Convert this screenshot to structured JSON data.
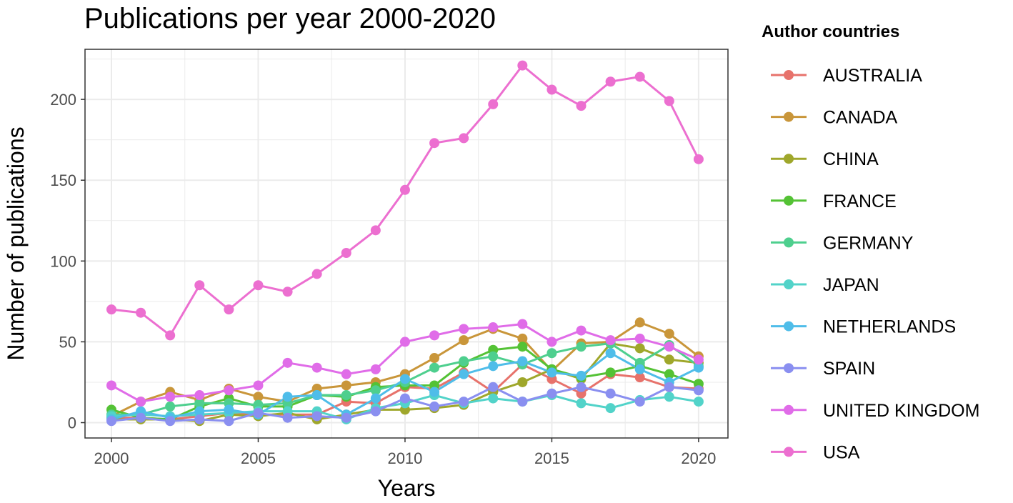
{
  "chart_data": {
    "type": "line",
    "title": "Publications per year 2000-2020",
    "xlabel": "Years",
    "ylabel": "Number of publications",
    "legend_title": "Author countries",
    "legend_position": "right",
    "grid": true,
    "xlim": [
      1999.1,
      2021
    ],
    "ylim": [
      -9.5,
      231
    ],
    "x_ticks": [
      2000,
      2005,
      2010,
      2015,
      2020
    ],
    "y_ticks": [
      0,
      50,
      100,
      150,
      200
    ],
    "x": [
      2000,
      2001,
      2002,
      2003,
      2004,
      2005,
      2006,
      2007,
      2008,
      2009,
      2010,
      2011,
      2012,
      2013,
      2014,
      2015,
      2016,
      2017,
      2018,
      2019,
      2020
    ],
    "series": [
      {
        "name": "AUSTRALIA",
        "color": "#F8766D",
        "values": [
          3,
          3,
          2,
          4,
          6,
          5,
          5,
          5,
          13,
          12,
          22,
          21,
          31,
          19,
          36,
          27,
          18,
          30,
          28,
          22,
          21
        ]
      },
      {
        "name": "CANADA",
        "color": "#D39200",
        "values": [
          4,
          13,
          19,
          14,
          21,
          16,
          13,
          21,
          23,
          25,
          30,
          40,
          51,
          58,
          52,
          32,
          49,
          50,
          62,
          55,
          41
        ]
      },
      {
        "name": "CHINA",
        "color": "#93AA00",
        "values": [
          2,
          2,
          2,
          1,
          5,
          4,
          6,
          2,
          5,
          8,
          8,
          9,
          11,
          19,
          25,
          33,
          27,
          49,
          46,
          39,
          37
        ]
      },
      {
        "name": "FRANCE",
        "color": "#00BA38",
        "values": [
          8,
          3,
          2,
          10,
          15,
          10,
          10,
          17,
          16,
          22,
          23,
          23,
          37,
          45,
          47,
          33,
          28,
          31,
          35,
          30,
          24
        ]
      },
      {
        "name": "GERMANY",
        "color": "#00C19F",
        "values": [
          5,
          5,
          10,
          12,
          12,
          11,
          12,
          17,
          17,
          20,
          25,
          34,
          38,
          41,
          36,
          43,
          47,
          49,
          37,
          48,
          35
        ]
      },
      {
        "name": "JAPAN",
        "color": "#00B9E3",
        "values": [
          4,
          5,
          4,
          5,
          6,
          7,
          7,
          7,
          2,
          9,
          12,
          17,
          12,
          15,
          13,
          17,
          12,
          9,
          14,
          16,
          13
        ]
      },
      {
        "name": "NETHERLANDS",
        "color": "#619CFF",
        "values": [
          2,
          7,
          3,
          7,
          8,
          5,
          16,
          17,
          5,
          15,
          27,
          19,
          30,
          35,
          38,
          31,
          29,
          43,
          33,
          25,
          34
        ]
      },
      {
        "name": "SPAIN",
        "color": "#DB72FB",
        "values": [
          1,
          3,
          1,
          2,
          1,
          6,
          3,
          4,
          3,
          7,
          15,
          10,
          13,
          22,
          13,
          18,
          22,
          18,
          13,
          22,
          20
        ]
      },
      {
        "name": "UNITED KINGDOM",
        "color": "#F564E3",
        "values": [
          23,
          13,
          16,
          17,
          20,
          23,
          37,
          34,
          30,
          33,
          50,
          54,
          58,
          59,
          61,
          50,
          57,
          51,
          52,
          47,
          39
        ]
      },
      {
        "name": "USA",
        "color": "#FF61C3",
        "values": [
          70,
          68,
          54,
          85,
          70,
          85,
          81,
          92,
          105,
          119,
          144,
          173,
          176,
          197,
          221,
          206,
          196,
          211,
          214,
          199,
          163
        ]
      }
    ]
  },
  "colors": {
    "series": [
      "#e7726b",
      "#c9963a",
      "#9fa72b",
      "#54c235",
      "#4ecf8e",
      "#52d3c9",
      "#4fbde9",
      "#8a8ff0",
      "#e06ce8",
      "#ec6fd0"
    ],
    "AUSTRALIA": "#e7726b",
    "CANADA": "#c9963a",
    "CHINA": "#9fa72b",
    "FRANCE": "#54c235",
    "GERMANY": "#4ecf8e",
    "JAPAN": "#52d3c9",
    "NETHERLANDS": "#4fbde9",
    "SPAIN": "#8a8ff0",
    "UNITED KINGDOM": "#e06ce8",
    "USA": "#ec6fd0",
    "grid": "#ebebeb",
    "panel_border": "#333333"
  }
}
